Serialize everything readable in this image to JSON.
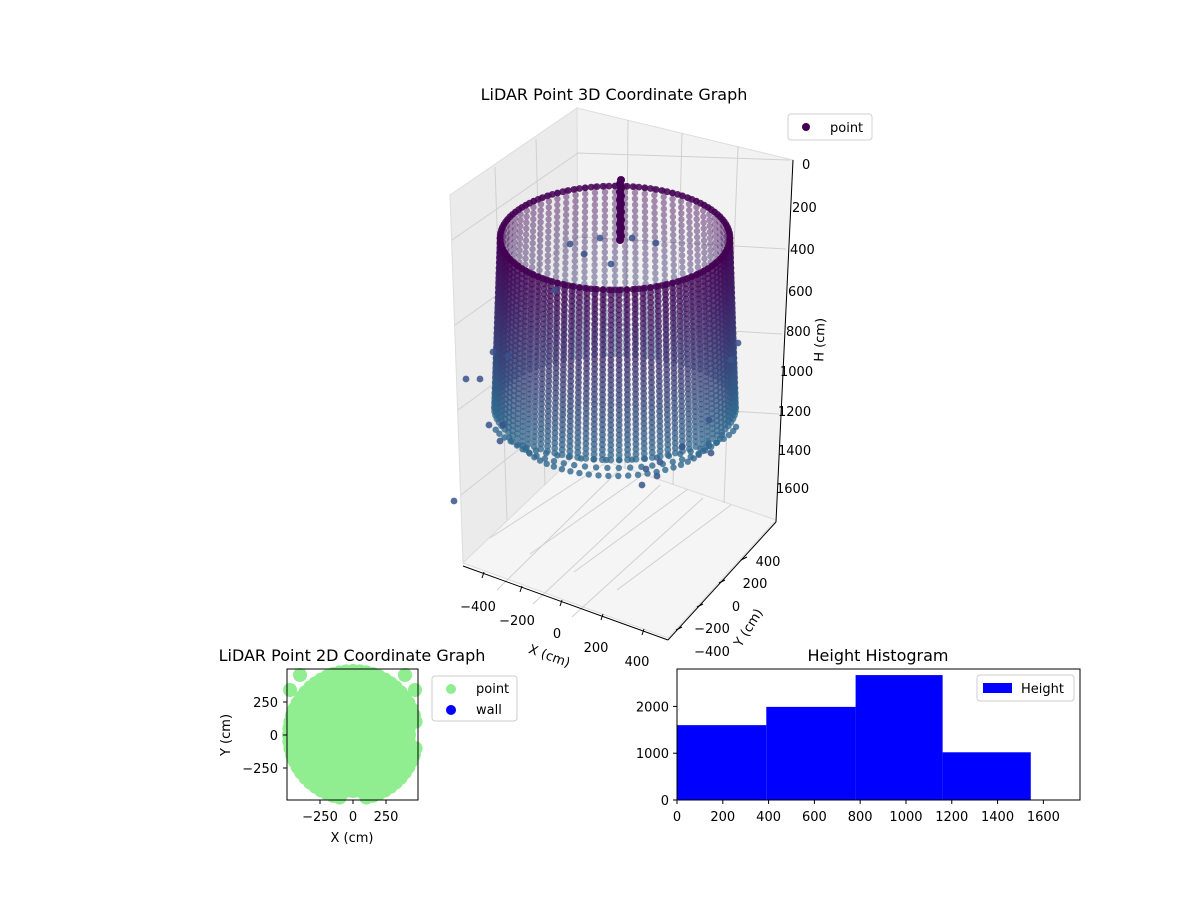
{
  "colors": {
    "point3d_top": "#440154",
    "point3d_mid": "#3b528b",
    "point3d_low": "#31688e",
    "point2d": "#90ee90",
    "wall": "#0000ff",
    "hist": "#0000ff",
    "pane": "#f2f2f2",
    "grid": "#cccccc"
  },
  "chart_data": [
    {
      "type": "scatter3d",
      "title": "LiDAR Point 3D Coordinate Graph",
      "xlabel": "X (cm)",
      "ylabel": "Y (cm)",
      "zlabel": "H (cm)",
      "x_ticks": [
        "−400",
        "−200",
        "0",
        "200",
        "400"
      ],
      "y_ticks": [
        "−400",
        "−200",
        "0",
        "200",
        "400"
      ],
      "z_ticks": [
        "0",
        "200",
        "400",
        "600",
        "800",
        "1000",
        "1200",
        "1400",
        "1600"
      ],
      "legend": [
        "point"
      ],
      "legend_position": "top-right"
    },
    {
      "type": "scatter",
      "title": "LiDAR Point 2D Coordinate Graph",
      "xlabel": "X (cm)",
      "ylabel": "Y (cm)",
      "x_ticks": [
        "−250",
        "0",
        "250"
      ],
      "y_ticks": [
        "250",
        "0",
        "−250"
      ],
      "xlim": [
        -500,
        500
      ],
      "ylim": [
        -500,
        500
      ],
      "legend": [
        "point",
        "wall"
      ],
      "legend_position": "outside-right"
    },
    {
      "type": "bar",
      "title": "Height Histogram",
      "bin_edges": [
        0,
        390,
        780,
        1160,
        1545
      ],
      "values": [
        1600,
        1990,
        2670,
        1020
      ],
      "xlim": [
        0,
        1760
      ],
      "ylim": [
        0,
        2800
      ],
      "x_ticks": [
        0,
        200,
        400,
        600,
        800,
        1000,
        1200,
        1400,
        1600
      ],
      "y_ticks": [
        0,
        1000,
        2000
      ],
      "legend": [
        "Height"
      ],
      "legend_position": "top-right"
    }
  ]
}
